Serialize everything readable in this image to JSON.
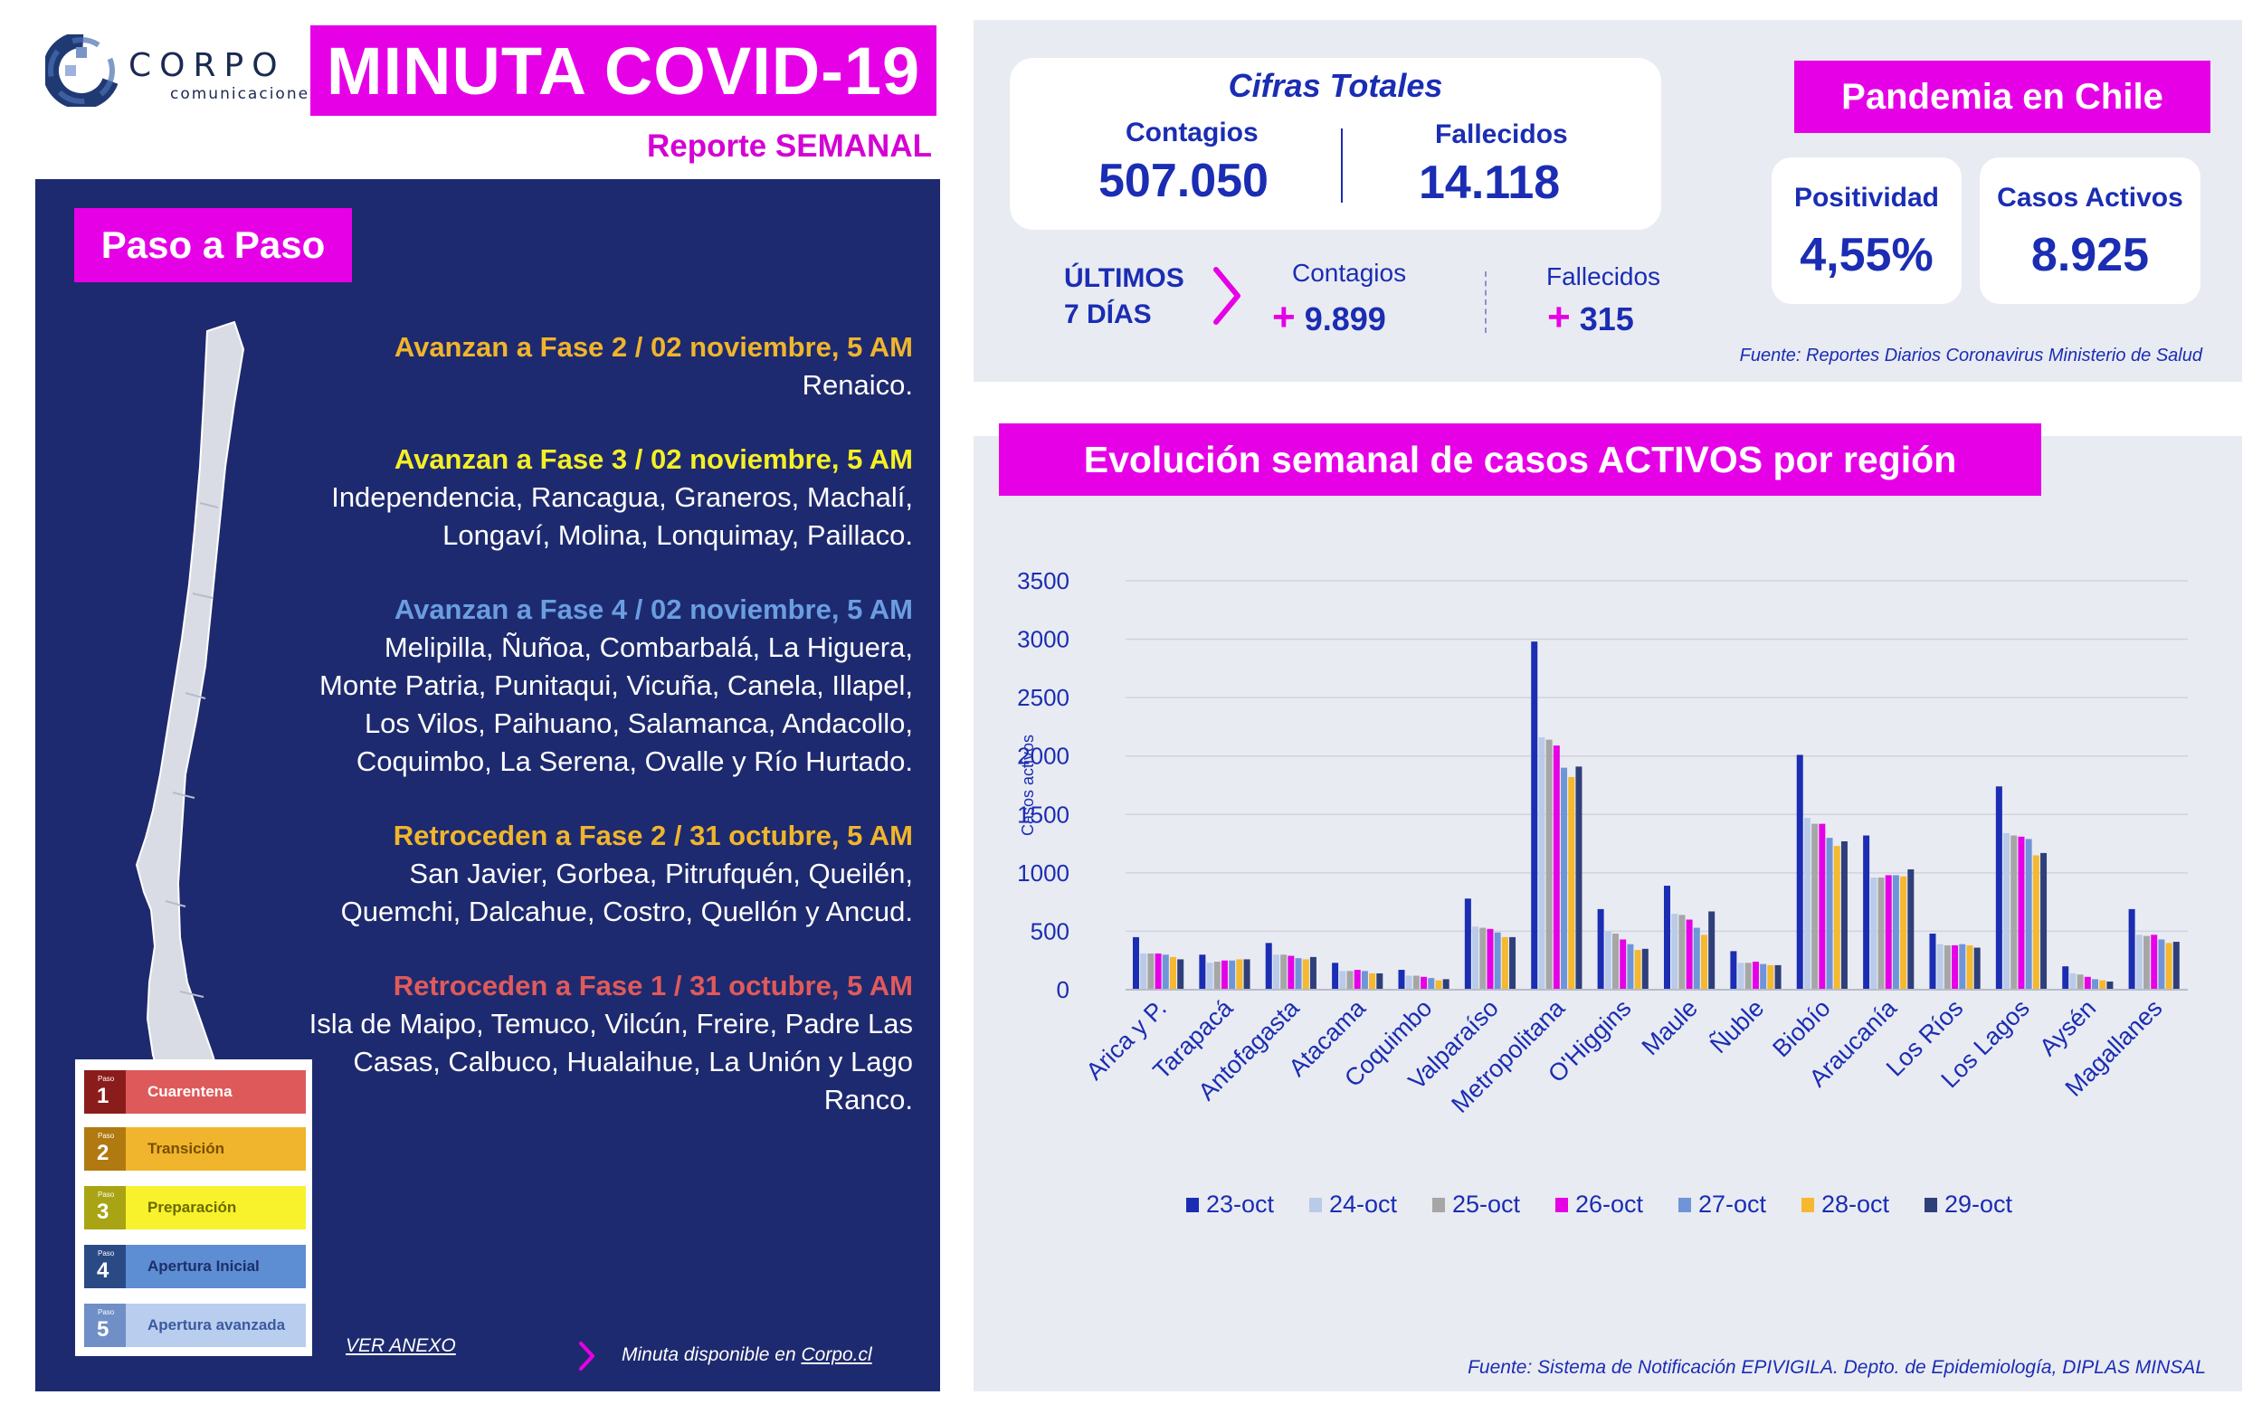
{
  "header": {
    "logo_name": "CORPO",
    "logo_sub": "comunicaciones",
    "title": "MINUTA COVID-19",
    "subtitle": "Reporte SEMANAL"
  },
  "left": {
    "badge": "Paso a Paso",
    "entries": [
      {
        "head": "Avanzan a Fase 2 / 02  noviembre, 5 AM",
        "color": "#f0b52c",
        "body": "Renaico."
      },
      {
        "head": "Avanzan a Fase 3 / 02  noviembre, 5 AM",
        "color": "#f5f025",
        "body": "Independencia, Rancagua, Graneros, Machalí, Longaví, Molina, Lonquimay, Paillaco."
      },
      {
        "head": "Avanzan a Fase 4 / 02  noviembre, 5 AM",
        "color": "#6a9ee0",
        "body": "Melipilla, Ñuñoa, Combarbalá, La Higuera, Monte Patria, Punitaqui, Vicuña, Canela, Illapel, Los Vilos, Paihuano, Salamanca, Andacollo, Coquimbo, La Serena, Ovalle y Río Hurtado."
      },
      {
        "head": "Retroceden a Fase 2 / 31  octubre, 5 AM",
        "color": "#f0b52c",
        "body": "San Javier, Gorbea, Pitrufquén, Queilén, Quemchi, Dalcahue, Costro, Quellón y Ancud."
      },
      {
        "head": "Retroceden a Fase 1 / 31 octubre, 5 AM",
        "color": "#e05a5a",
        "body": "Isla de Maipo, Temuco, Vilcún, Freire, Padre Las Casas, Calbuco, Hualaihue, La Unión y Lago Ranco."
      }
    ],
    "legend": [
      {
        "small": "Paso",
        "num": "1",
        "label": "Cuarentena",
        "dark": "#8b1c1c",
        "light": "#de5a5a",
        "text": "#ffffff"
      },
      {
        "small": "Paso",
        "num": "2",
        "label": "Transición",
        "dark": "#b07a10",
        "light": "#f0b52c",
        "text": "#7a4e00"
      },
      {
        "small": "Paso",
        "num": "3",
        "label": "Preparación",
        "dark": "#a9a414",
        "light": "#f7f22c",
        "text": "#6c6a00"
      },
      {
        "small": "Paso",
        "num": "4",
        "label": "Apertura Inicial",
        "dark": "#2a4a86",
        "light": "#5d8dd3",
        "text": "#1c2f6a"
      },
      {
        "small": "Paso",
        "num": "5",
        "label": "Apertura avanzada",
        "dark": "#6f8fc6",
        "light": "#b9cdee",
        "text": "#3b5aa0"
      }
    ],
    "ver_anexo": "VER ANEXO",
    "minuta_text": "Minuta disponible en ",
    "minuta_link": "Corpo.cl"
  },
  "cifras": {
    "title": "Cifras Totales",
    "contagios_label": "Contagios",
    "contagios_value": "507.050",
    "fallecidos_label": "Fallecidos",
    "fallecidos_value": "14.118",
    "ultimos_line1": "ÚLTIMOS",
    "ultimos_line2": "7 DÍAS",
    "u_contagios_label": "Contagios",
    "u_contagios_plus": "+",
    "u_contagios_value": "9.899",
    "u_fallecidos_label": "Fallecidos",
    "u_fallecidos_plus": "+",
    "u_fallecidos_value": "315",
    "fuente": "Fuente: Reportes Diarios Coronavirus Ministerio de Salud"
  },
  "pandemia": {
    "badge": "Pandemia en Chile",
    "positividad_label": "Positividad",
    "positividad_value": "4,55%",
    "activos_label": "Casos Activos",
    "activos_value": "8.925"
  },
  "evolucion": {
    "badge": "Evolución semanal de casos ACTIVOS por región",
    "fuente": "Fuente: Sistema de Notificación EPIVIGILA. Depto. de Epidemiología, DIPLAS MINSAL"
  },
  "chart_data": {
    "type": "bar",
    "title": "",
    "ylabel": "Casos activos",
    "xlabel": "",
    "ylim": [
      0,
      3500
    ],
    "yticks": [
      0,
      500,
      1000,
      1500,
      2000,
      2500,
      3000,
      3500
    ],
    "grid": true,
    "legend_position": "bottom",
    "categories": [
      "Arica y P.",
      "Tarapacá",
      "Antofagasta",
      "Atacama",
      "Coquimbo",
      "Valparaíso",
      "Metropolitana",
      "O'Higgins",
      "Maule",
      "Ñuble",
      "Biobío",
      "Araucanía",
      "Los Ríos",
      "Los Lagos",
      "Aysén",
      "Magallanes"
    ],
    "series": [
      {
        "name": "23-oct",
        "color": "#1a2db3",
        "values": [
          450,
          300,
          400,
          230,
          170,
          780,
          2980,
          690,
          890,
          330,
          2010,
          1320,
          480,
          1740,
          200,
          690
        ]
      },
      {
        "name": "24-oct",
        "color": "#b9cbe8",
        "values": [
          310,
          230,
          300,
          160,
          120,
          540,
          2160,
          500,
          650,
          230,
          1470,
          960,
          390,
          1340,
          140,
          470
        ]
      },
      {
        "name": "25-oct",
        "color": "#a6a6a6",
        "values": [
          310,
          240,
          300,
          160,
          120,
          530,
          2140,
          480,
          640,
          230,
          1420,
          960,
          380,
          1320,
          130,
          460
        ]
      },
      {
        "name": "26-oct",
        "color": "#e600e6",
        "values": [
          310,
          250,
          290,
          170,
          110,
          520,
          2090,
          430,
          600,
          240,
          1420,
          980,
          380,
          1310,
          110,
          470
        ]
      },
      {
        "name": "27-oct",
        "color": "#6f95d8",
        "values": [
          300,
          250,
          270,
          160,
          100,
          490,
          1900,
          390,
          530,
          220,
          1300,
          980,
          390,
          1290,
          90,
          430
        ]
      },
      {
        "name": "28-oct",
        "color": "#f5b82e",
        "values": [
          280,
          260,
          260,
          140,
          80,
          450,
          1820,
          340,
          470,
          210,
          1230,
          970,
          380,
          1150,
          80,
          400
        ]
      },
      {
        "name": "29-oct",
        "color": "#2e3f7a",
        "values": [
          260,
          260,
          280,
          140,
          90,
          450,
          1910,
          350,
          670,
          210,
          1270,
          1030,
          360,
          1170,
          70,
          410
        ]
      }
    ]
  }
}
